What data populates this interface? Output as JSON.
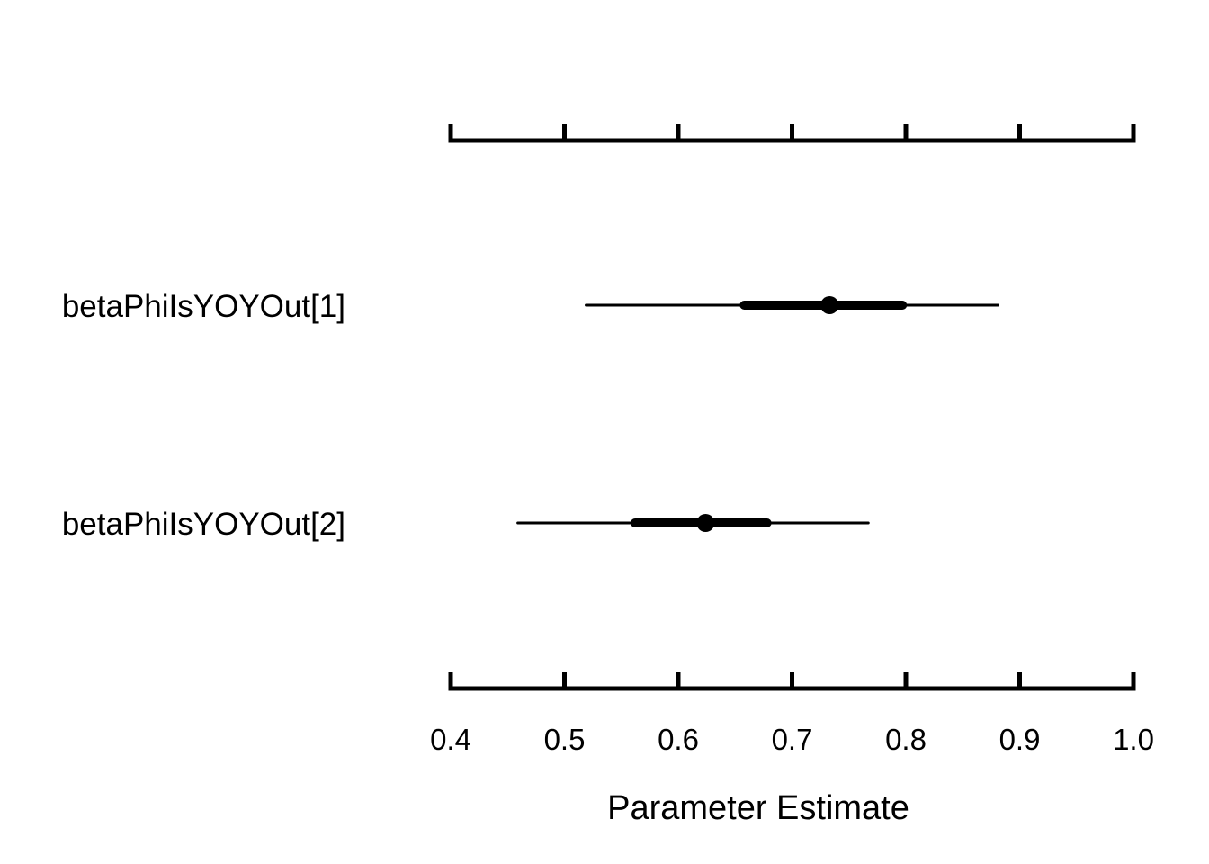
{
  "chart_data": {
    "type": "forest",
    "xlabel": "Parameter Estimate",
    "xlim": [
      0.4,
      1.0
    ],
    "ticks": [
      0.4,
      0.5,
      0.6,
      0.7,
      0.8,
      0.9,
      1.0
    ],
    "tick_labels": [
      "0.4",
      "0.5",
      "0.6",
      "0.7",
      "0.8",
      "0.9",
      "1.0"
    ],
    "top_axis_labels": false,
    "grid": false,
    "legend": "none",
    "series": [
      {
        "name": "betaPhiIsYOYOut[1]",
        "estimate": 0.733,
        "inner_low": 0.658,
        "inner_high": 0.797,
        "outer_low": 0.519,
        "outer_high": 0.881
      },
      {
        "name": "betaPhiIsYOYOut[2]",
        "estimate": 0.624,
        "inner_low": 0.562,
        "inner_high": 0.678,
        "outer_low": 0.459,
        "outer_high": 0.767
      }
    ]
  }
}
